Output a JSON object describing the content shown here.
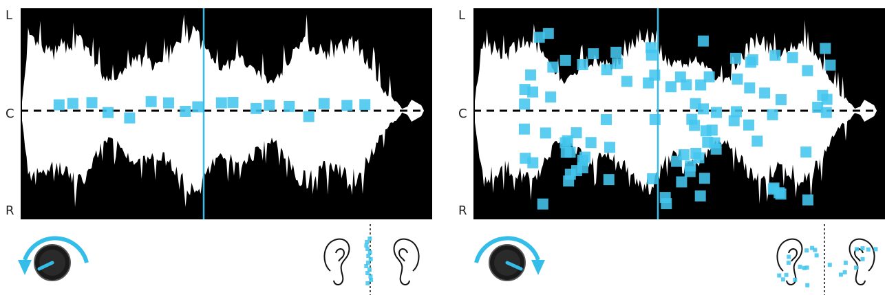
{
  "colors": {
    "background": "#000000",
    "waveform": "#ffffff",
    "particle": "#43c6ee",
    "playhead": "#35bdea",
    "center_line": "#000000",
    "knob": "#222222",
    "knob_indicator": "#35bdea",
    "arrow": "#35bdea"
  },
  "panels": [
    {
      "id": "narrow",
      "axis_labels": {
        "top": "L",
        "center": "C",
        "bottom": "R"
      },
      "spread": "narrow",
      "knob_direction": "counter-clockwise",
      "ear_icons": [
        "left-ear-icon",
        "right-ear-icon"
      ]
    },
    {
      "id": "wide",
      "axis_labels": {
        "top": "L",
        "center": "C",
        "bottom": "R"
      },
      "spread": "wide",
      "knob_direction": "clockwise",
      "ear_icons": [
        "left-ear-icon",
        "right-ear-icon"
      ]
    }
  ]
}
